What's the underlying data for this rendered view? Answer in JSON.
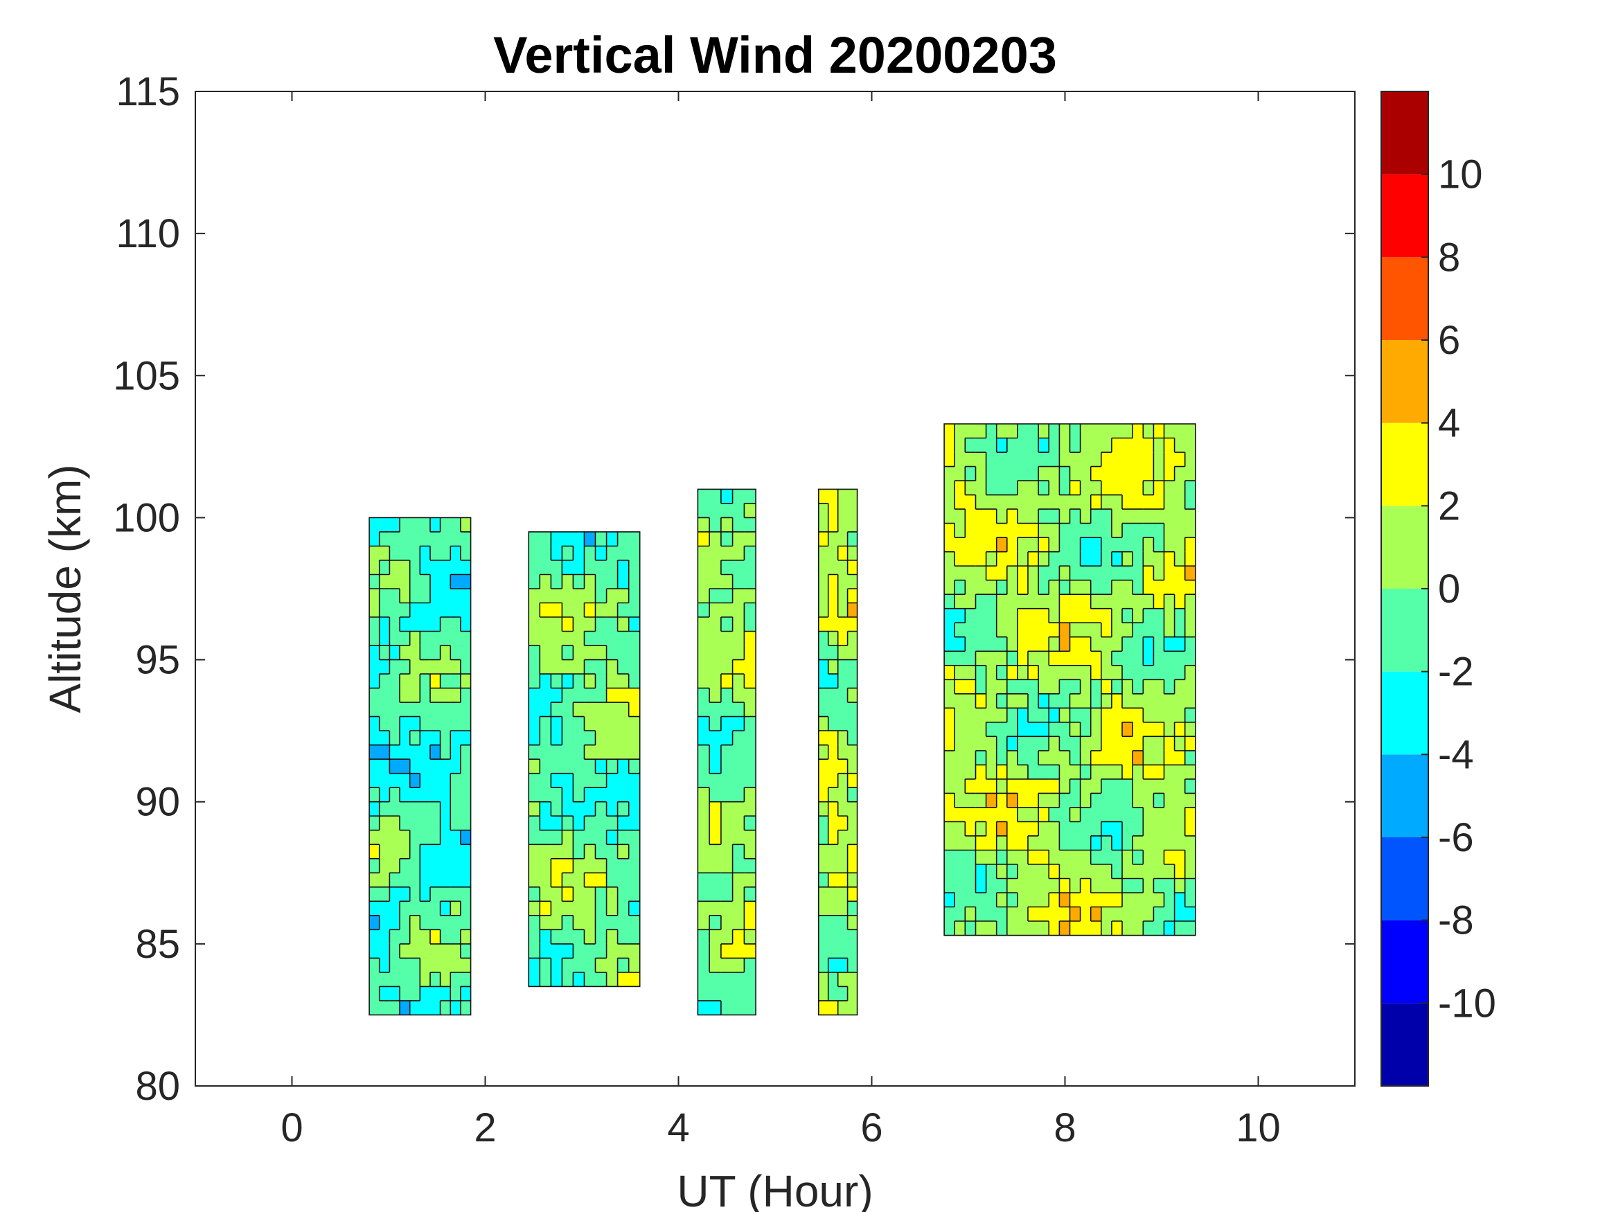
{
  "chart_data": {
    "type": "heatmap",
    "subtype": "filled-contour",
    "title": "Vertical Wind 20200203",
    "xlabel": "UT (Hour)",
    "ylabel": "Altitude (km)",
    "xlim": [
      -1,
      11
    ],
    "ylim": [
      80,
      115
    ],
    "xticks": [
      0,
      2,
      4,
      6,
      8,
      10
    ],
    "xtick_labels": [
      "0",
      "2",
      "4",
      "6",
      "8",
      "10"
    ],
    "yticks": [
      80,
      85,
      90,
      95,
      100,
      105,
      110,
      115
    ],
    "ytick_labels": [
      "80",
      "85",
      "90",
      "95",
      "100",
      "105",
      "110",
      "115"
    ],
    "colorbar": {
      "levels": [
        -12,
        -10,
        -8,
        -6,
        -4,
        -2,
        0,
        2,
        4,
        6,
        8,
        10,
        12
      ],
      "tick_values": [
        -10,
        -8,
        -6,
        -4,
        -2,
        0,
        2,
        4,
        6,
        8,
        10
      ],
      "tick_labels": [
        "-10",
        "-8",
        "-6",
        "-4",
        "-2",
        "0",
        "2",
        "4",
        "6",
        "8",
        "10"
      ],
      "colors": [
        "#0000aa",
        "#0000ff",
        "#0055ff",
        "#00aaff",
        "#00ffff",
        "#55ffaa",
        "#aaff55",
        "#ffff00",
        "#ffaa00",
        "#ff5500",
        "#ff0000",
        "#aa0000"
      ]
    },
    "segments": [
      {
        "ut_start": 0.8,
        "ut_end": 1.85,
        "alt_min": 82.5,
        "alt_max": 100,
        "mean_wind": -1.5
      },
      {
        "ut_start": 2.45,
        "ut_end": 3.6,
        "alt_min": 83.5,
        "alt_max": 99.5,
        "mean_wind": -0.5
      },
      {
        "ut_start": 4.2,
        "ut_end": 4.8,
        "alt_min": 82.5,
        "alt_max": 101,
        "mean_wind": 0.2
      },
      {
        "ut_start": 5.45,
        "ut_end": 5.85,
        "alt_min": 82.5,
        "alt_max": 101,
        "mean_wind": 1.0
      },
      {
        "ut_start": 6.75,
        "ut_end": 9.35,
        "alt_min": 85.3,
        "alt_max": 103.3,
        "mean_wind": 0.8
      }
    ]
  }
}
